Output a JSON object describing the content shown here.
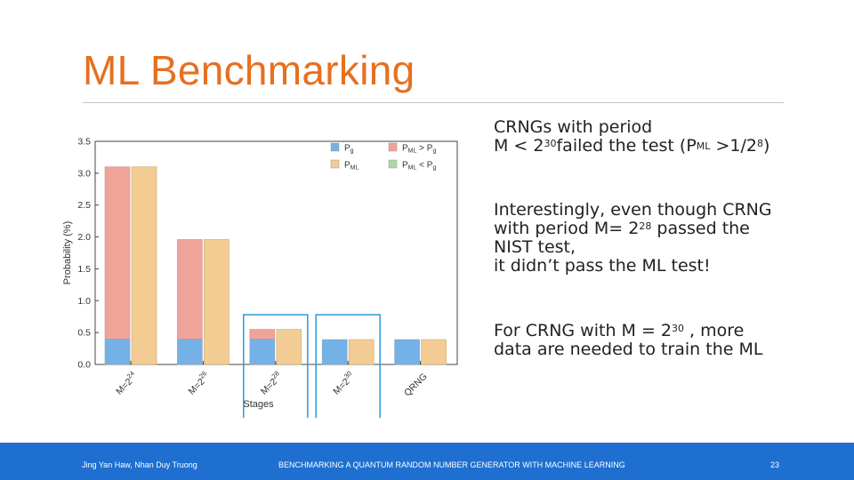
{
  "slide": {
    "title": "ML Benchmarking",
    "blocks": [
      {
        "l1_a": "CRNGs with period",
        "l2_a": "M < 2",
        "l2_exp": "30",
        "l2_b": "failed the test (P",
        "l2_sub": "ML",
        "l2_c": " >1/2",
        "l2_exp2": "8",
        "l2_d": ")"
      },
      {
        "line1": "Interestingly, even though CRNG",
        "line2_a": "with period M= 2",
        "line2_exp": "28",
        "line2_b": " passed the",
        "line3": "NIST test,",
        "line4": "it didn’t pass the ML test!"
      },
      {
        "line1_a": "For CRNG with M = 2",
        "line1_exp": "30",
        "line1_b": " , more",
        "line2": "data are needed to train the ML"
      }
    ],
    "footer": {
      "authors": "Jing Yan Haw, Nhan Duy Truong",
      "caption": "BENCHMARKING A QUANTUM RANDOM NUMBER GENERATOR WITH MACHINE LEARNING",
      "page": "23"
    }
  },
  "chart_data": {
    "type": "bar",
    "xlabel": "Stages",
    "ylabel": "Probability (%)",
    "ylim": [
      0,
      3.5
    ],
    "yticks": [
      "0.0",
      "0.5",
      "1.0",
      "1.5",
      "2.0",
      "2.5",
      "3.0",
      "3.5"
    ],
    "categories": [
      {
        "base": "M=2",
        "exp": "24"
      },
      {
        "base": "M=2",
        "exp": "26"
      },
      {
        "base": "M=2",
        "exp": "28"
      },
      {
        "base": "M=2",
        "exp": "30"
      },
      {
        "base": "QRNG",
        "exp": ""
      }
    ],
    "series": [
      {
        "name": "P_g",
        "values": [
          0.4,
          0.4,
          0.4,
          0.39,
          0.39
        ]
      },
      {
        "name": "P_ML",
        "values": [
          3.1,
          1.96,
          0.55,
          0.39,
          0.39
        ]
      }
    ],
    "legend": {
      "placement": "top-right",
      "entries": [
        {
          "label_base": "P",
          "label_sub": "g",
          "label_rest": "",
          "color": "#74b1e6"
        },
        {
          "label_base": "P",
          "label_sub": "ML",
          "label_rest": "",
          "color": "#f2cc92"
        },
        {
          "label_base": "P",
          "label_sub": "ML",
          "label_rest": " > P",
          "label_sub2": "g",
          "color": "#f0a398"
        },
        {
          "label_base": "P",
          "label_sub": "ML",
          "label_rest": " < P",
          "label_sub2": "g",
          "color": "#a9d9a8"
        }
      ]
    },
    "colors": {
      "pg": "#74b1e6",
      "pml": "#f2cc92",
      "excess": "#f0a398",
      "highlight": "#3a9fdc"
    },
    "highlighted": [
      2,
      3
    ],
    "grid": false
  }
}
